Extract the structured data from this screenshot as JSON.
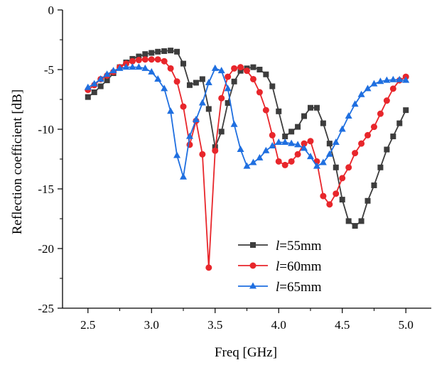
{
  "chart_data": {
    "type": "line",
    "title": "",
    "xlabel": "Freq [GHz]",
    "ylabel": "Reflection coefficient [dB]",
    "xlim": [
      2.3,
      5.2
    ],
    "ylim": [
      -25,
      0
    ],
    "xticks": [
      "2.5",
      "3.0",
      "3.5",
      "4.0",
      "4.5",
      "5.0"
    ],
    "yticks": [
      "0",
      "-5",
      "-10",
      "-15",
      "-20",
      "-25"
    ],
    "grid": false,
    "legend_position": "bottom-center",
    "series": [
      {
        "name_var": "l",
        "name_rest": "=55mm",
        "color": "#3d3d3d",
        "marker": "square",
        "x": [
          2.5,
          2.55,
          2.6,
          2.65,
          2.7,
          2.75,
          2.8,
          2.85,
          2.9,
          2.95,
          3.0,
          3.05,
          3.1,
          3.15,
          3.2,
          3.25,
          3.3,
          3.35,
          3.4,
          3.45,
          3.5,
          3.55,
          3.6,
          3.65,
          3.7,
          3.75,
          3.8,
          3.85,
          3.9,
          3.95,
          4.0,
          4.05,
          4.1,
          4.15,
          4.2,
          4.25,
          4.3,
          4.35,
          4.4,
          4.45,
          4.5,
          4.55,
          4.6,
          4.65,
          4.7,
          4.75,
          4.8,
          4.85,
          4.9,
          4.95,
          5.0
        ],
        "y": [
          -7.3,
          -6.9,
          -6.4,
          -5.9,
          -5.3,
          -4.8,
          -4.4,
          -4.1,
          -3.9,
          -3.7,
          -3.6,
          -3.5,
          -3.45,
          -3.4,
          -3.5,
          -4.5,
          -6.3,
          -6.1,
          -5.8,
          -8.3,
          -11.5,
          -10.2,
          -7.8,
          -6.0,
          -5.1,
          -4.9,
          -4.8,
          -5.0,
          -5.4,
          -6.4,
          -8.5,
          -10.6,
          -10.2,
          -9.8,
          -8.9,
          -8.2,
          -8.2,
          -9.5,
          -11.2,
          -13.2,
          -15.9,
          -17.7,
          -18.1,
          -17.7,
          -16.0,
          -14.7,
          -13.2,
          -11.7,
          -10.6,
          -9.5,
          -8.4
        ]
      },
      {
        "name_var": "l",
        "name_rest": "=60mm",
        "color": "#e8262b",
        "marker": "circle",
        "x": [
          2.5,
          2.55,
          2.6,
          2.65,
          2.7,
          2.75,
          2.8,
          2.85,
          2.9,
          2.95,
          3.0,
          3.05,
          3.1,
          3.15,
          3.2,
          3.25,
          3.3,
          3.35,
          3.4,
          3.45,
          3.5,
          3.55,
          3.6,
          3.65,
          3.7,
          3.75,
          3.8,
          3.85,
          3.9,
          3.95,
          4.0,
          4.05,
          4.1,
          4.15,
          4.2,
          4.25,
          4.3,
          4.35,
          4.4,
          4.45,
          4.5,
          4.55,
          4.6,
          4.65,
          4.7,
          4.75,
          4.8,
          4.85,
          4.9,
          4.95,
          5.0
        ],
        "y": [
          -6.7,
          -6.3,
          -5.8,
          -5.5,
          -5.2,
          -4.8,
          -4.5,
          -4.3,
          -4.2,
          -4.15,
          -4.15,
          -4.15,
          -4.3,
          -4.9,
          -6.0,
          -8.1,
          -11.3,
          -9.3,
          -12.1,
          -21.6,
          -11.8,
          -7.4,
          -5.6,
          -4.9,
          -4.8,
          -5.1,
          -5.8,
          -6.9,
          -8.4,
          -10.5,
          -12.7,
          -13.0,
          -12.7,
          -12.1,
          -11.2,
          -11.0,
          -12.7,
          -15.6,
          -16.3,
          -15.4,
          -14.1,
          -13.2,
          -12.0,
          -11.2,
          -10.5,
          -9.8,
          -8.7,
          -7.6,
          -6.6,
          -5.9,
          -5.6
        ]
      },
      {
        "name_var": "l",
        "name_rest": "=65mm",
        "color": "#1f6fe0",
        "marker": "triangle",
        "x": [
          2.5,
          2.55,
          2.6,
          2.65,
          2.7,
          2.75,
          2.8,
          2.85,
          2.9,
          2.95,
          3.0,
          3.05,
          3.1,
          3.15,
          3.2,
          3.25,
          3.3,
          3.35,
          3.4,
          3.45,
          3.5,
          3.55,
          3.6,
          3.65,
          3.7,
          3.75,
          3.8,
          3.85,
          3.9,
          3.95,
          4.0,
          4.05,
          4.1,
          4.15,
          4.2,
          4.25,
          4.3,
          4.35,
          4.4,
          4.45,
          4.5,
          4.55,
          4.6,
          4.65,
          4.7,
          4.75,
          4.8,
          4.85,
          4.9,
          4.95,
          5.0
        ],
        "y": [
          -6.5,
          -6.2,
          -5.8,
          -5.4,
          -5.1,
          -4.9,
          -4.8,
          -4.8,
          -4.8,
          -4.9,
          -5.2,
          -5.8,
          -6.6,
          -8.5,
          -12.2,
          -14.0,
          -10.6,
          -9.2,
          -7.8,
          -6.1,
          -4.9,
          -5.1,
          -6.6,
          -9.6,
          -11.7,
          -13.1,
          -12.8,
          -12.4,
          -11.8,
          -11.4,
          -11.1,
          -11.1,
          -11.2,
          -11.3,
          -11.6,
          -12.3,
          -13.1,
          -12.8,
          -12.1,
          -11.1,
          -10.0,
          -8.9,
          -7.9,
          -7.1,
          -6.6,
          -6.2,
          -6.0,
          -5.9,
          -5.85,
          -5.85,
          -5.9
        ]
      }
    ]
  }
}
